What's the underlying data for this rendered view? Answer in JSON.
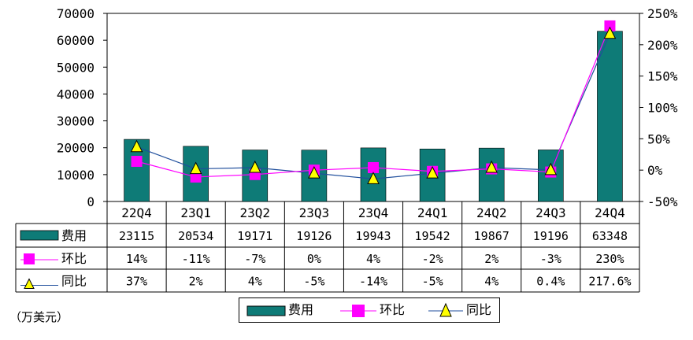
{
  "unit_label": "（万美元）",
  "colors": {
    "bar": "#0e7b77",
    "qoq": "#ff00ff",
    "yoy": "#ffff00",
    "yoy_line": "#1f4e9c"
  },
  "chart_data": {
    "type": "bar+line",
    "categories": [
      "22Q4",
      "23Q1",
      "23Q2",
      "23Q3",
      "23Q4",
      "24Q1",
      "24Q2",
      "24Q3",
      "24Q4"
    ],
    "y_left": {
      "min": 0,
      "max": 70000,
      "step": 10000,
      "ticks": [
        "0",
        "10000",
        "20000",
        "30000",
        "40000",
        "50000",
        "60000",
        "70000"
      ]
    },
    "y_right": {
      "min": -50,
      "max": 250,
      "step": 50,
      "ticks": [
        "-50%",
        "0%",
        "50%",
        "100%",
        "150%",
        "200%",
        "250%"
      ]
    },
    "series": [
      {
        "name": "费用",
        "type": "bar",
        "values": [
          23115,
          20534,
          19171,
          19126,
          19943,
          19542,
          19867,
          19196,
          63348
        ],
        "labels": [
          "23115",
          "20534",
          "19171",
          "19126",
          "19943",
          "19542",
          "19867",
          "19196",
          "63348"
        ]
      },
      {
        "name": "环比",
        "type": "line",
        "axis": "right",
        "values": [
          14,
          -11,
          -7,
          0,
          4,
          -2,
          2,
          -3,
          230
        ],
        "labels": [
          "14%",
          "-11%",
          "-7%",
          "0%",
          "4%",
          "-2%",
          "2%",
          "-3%",
          "230%"
        ]
      },
      {
        "name": "同比",
        "type": "line",
        "axis": "right",
        "values": [
          37,
          2,
          4,
          -5,
          -14,
          -5,
          4,
          0.4,
          217.6
        ],
        "labels": [
          "37%",
          "2%",
          "4%",
          "-5%",
          "-14%",
          "-5%",
          "4%",
          "0.4%",
          "217.6%"
        ]
      }
    ],
    "grid": false,
    "legend": "bottom-center"
  }
}
